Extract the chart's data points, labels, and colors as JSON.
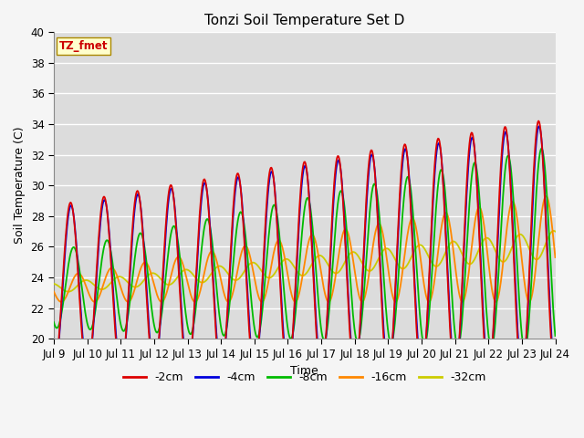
{
  "title": "Tonzi Soil Temperature Set D",
  "xlabel": "Time",
  "ylabel": "Soil Temperature (C)",
  "ylim": [
    20,
    40
  ],
  "xlim_days": [
    9,
    24
  ],
  "plot_bg_color": "#dcdcdc",
  "fig_bg_color": "#f5f5f5",
  "grid_color": "white",
  "legend_label": "TZ_fmet",
  "series": {
    "-2cm": {
      "color": "#dd0000",
      "lw": 1.3
    },
    "-4cm": {
      "color": "#0000dd",
      "lw": 1.3
    },
    "-8cm": {
      "color": "#00bb00",
      "lw": 1.3
    },
    "-16cm": {
      "color": "#ff8800",
      "lw": 1.3
    },
    "-32cm": {
      "color": "#cccc00",
      "lw": 1.3
    }
  },
  "tick_days": [
    9,
    10,
    11,
    12,
    13,
    14,
    15,
    16,
    17,
    18,
    19,
    20,
    21,
    22,
    23,
    24
  ],
  "yticks": [
    20,
    22,
    24,
    26,
    28,
    30,
    32,
    34,
    36,
    38,
    40
  ]
}
